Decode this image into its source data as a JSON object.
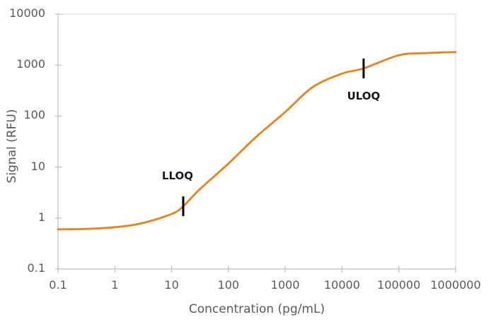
{
  "chart_data": {
    "type": "line",
    "title": "",
    "xlabel": "Concentration (pg/mL)",
    "ylabel": "Signal (RFU)",
    "x_scale": "log",
    "y_scale": "log",
    "xlim": [
      0.1,
      1000000
    ],
    "ylim": [
      0.1,
      10000
    ],
    "x_ticks": [
      0.1,
      1,
      10,
      100,
      1000,
      10000,
      100000,
      1000000
    ],
    "x_tick_labels": [
      "0.1",
      "1",
      "10",
      "100",
      "1000",
      "10000",
      "100000",
      "1000000"
    ],
    "y_ticks": [
      0.1,
      1,
      10,
      100,
      1000,
      10000
    ],
    "y_tick_labels": [
      "0.1",
      "1",
      "10",
      "100",
      "1000",
      "10000"
    ],
    "grid": false,
    "legend": false,
    "series": [
      {
        "name": "sigmoidal-calibration-curve",
        "shape": "4PL-sigmoid",
        "color": "#E8821E",
        "lower_asymptote": 0.6,
        "upper_asymptote": 1800,
        "points": [
          [
            0.1,
            0.6
          ],
          [
            0.3,
            0.61
          ],
          [
            1,
            0.66
          ],
          [
            3,
            0.79
          ],
          [
            10,
            1.2
          ],
          [
            16,
            1.7
          ],
          [
            30,
            3.5
          ],
          [
            100,
            11.7
          ],
          [
            300,
            38
          ],
          [
            1000,
            120
          ],
          [
            3000,
            365
          ],
          [
            10000,
            680
          ],
          [
            24000,
            860
          ],
          [
            100000,
            1560
          ],
          [
            300000,
            1720
          ],
          [
            1000000,
            1800
          ]
        ]
      }
    ],
    "annotations": [
      {
        "label": "LLOQ",
        "x": 16,
        "y": 1.7,
        "label_position": "above",
        "label_dx": -8,
        "marker": "vertical-tick",
        "color": "#000000"
      },
      {
        "label": "ULOQ",
        "x": 24000,
        "y": 860,
        "label_position": "below",
        "label_dx": 0,
        "marker": "vertical-tick",
        "color": "#000000"
      }
    ],
    "axis_color": "#BFBFBF",
    "border_color": "#D6D6D6",
    "tick_label_color": "#595959",
    "background": "#FFFFFF"
  }
}
